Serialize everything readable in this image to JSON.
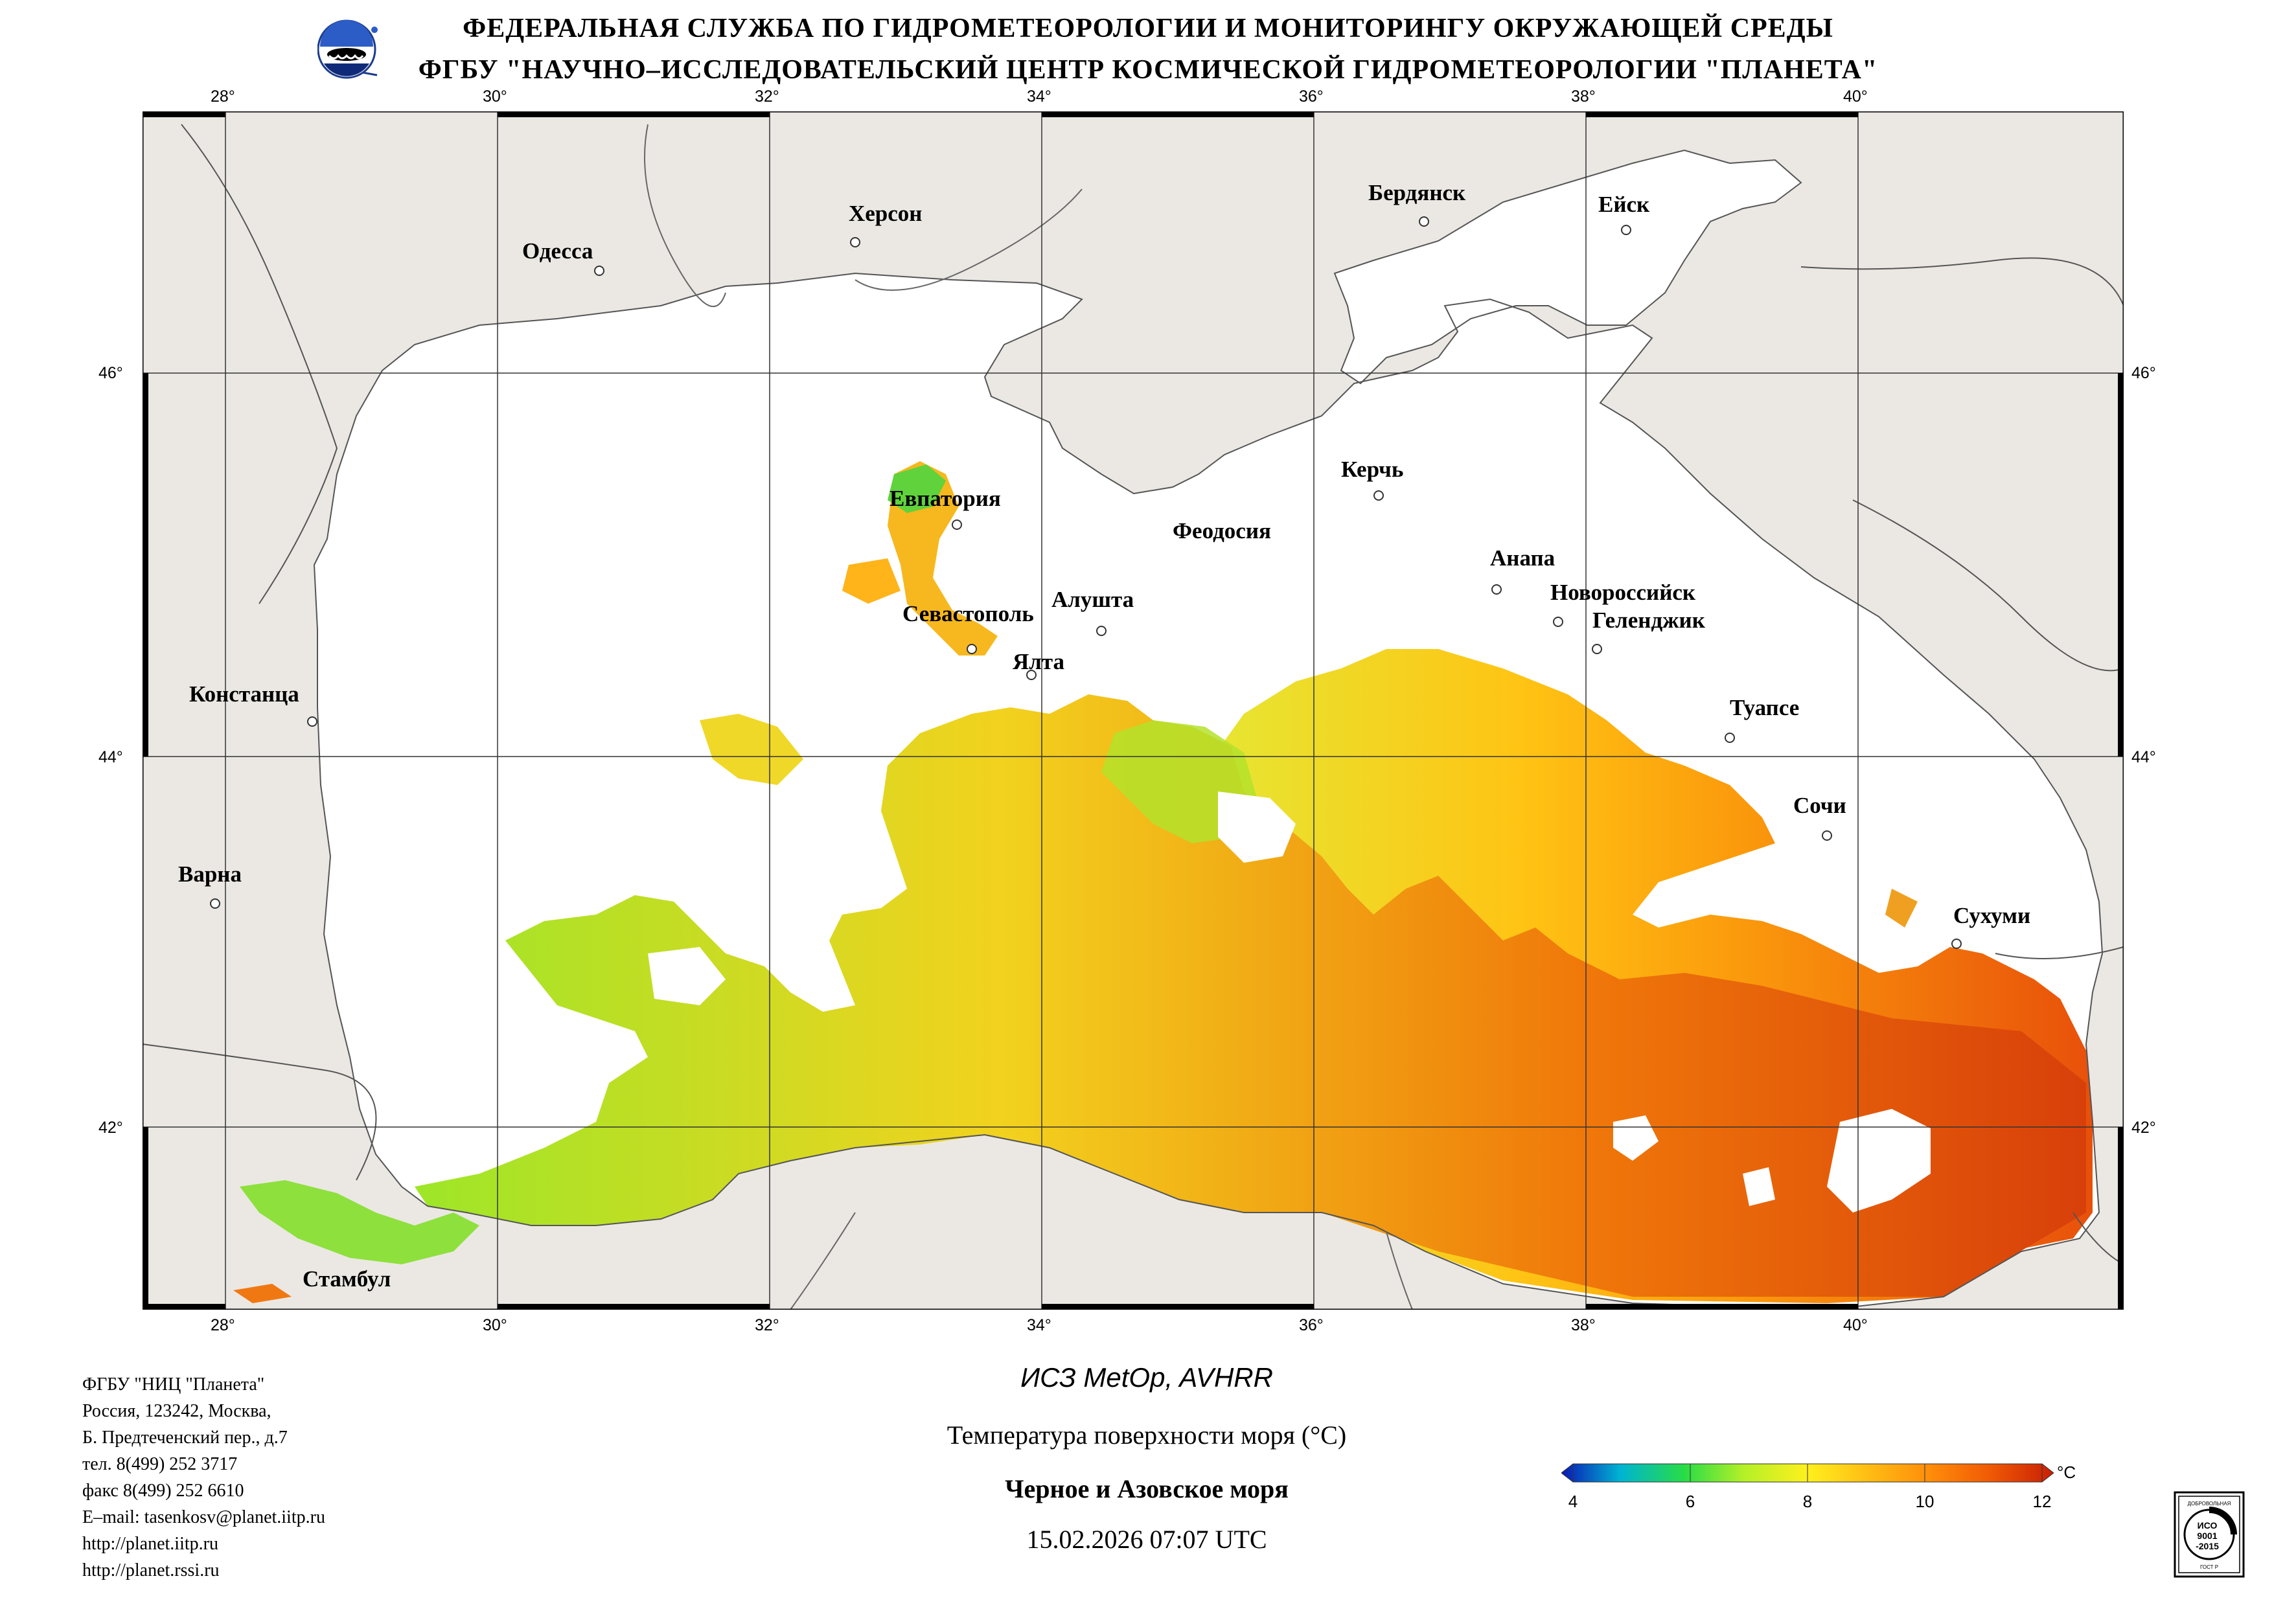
{
  "header": {
    "line1": "ФЕДЕРАЛЬНАЯ СЛУЖБА ПО ГИДРОМЕТЕОРОЛОГИИ И МОНИТОРИНГУ ОКРУЖАЮЩЕЙ СРЕДЫ",
    "line2": "ФГБУ \"НАУЧНО–ИССЛЕДОВАТЕЛЬСКИЙ ЦЕНТР КОСМИЧЕСКОЙ ГИДРОМЕТЕОРОЛОГИИ \"ПЛАНЕТА\""
  },
  "map": {
    "lon_labels": [
      "28°",
      "30°",
      "32°",
      "34°",
      "36°",
      "38°",
      "40°"
    ],
    "lat_labels": [
      "46°",
      "44°",
      "42°"
    ],
    "cities": {
      "odessa": "Одесса",
      "kherson": "Херсон",
      "berdyansk": "Бердянск",
      "yeysk": "Ейск",
      "evpatoria": "Евпатория",
      "kerch": "Керчь",
      "feodosia": "Феодосия",
      "anapa": "Анапа",
      "novorossiysk": "Новороссийск",
      "gelendzhik": "Геленджик",
      "alushta": "Алушта",
      "sevastopol": "Севастополь",
      "yalta": "Ялта",
      "constanta": "Констанца",
      "tuapse": "Туапсе",
      "sochi": "Сочи",
      "varna": "Варна",
      "sukhumi": "Сухуми",
      "istanbul": "Стамбул"
    },
    "colors": {
      "land": "#ebe8e4",
      "cloud": "#ffffff",
      "grid": "#333333"
    }
  },
  "info": {
    "org": "ФГБУ \"НИЦ \"Планета\"",
    "addr1": "Россия, 123242, Москва,",
    "addr2": "Б. Предтеченский пер., д.7",
    "tel": "тел. 8(499) 252 3717",
    "fax": "факс 8(499) 252 6610",
    "email": "E–mail: tasenkosv@planet.iitp.ru",
    "url1": "http://planet.iitp.ru",
    "url2": "http://planet.rssi.ru"
  },
  "caption": {
    "satellite": "ИСЗ MetOp, AVHRR",
    "parameter": "Температура поверхности моря (°C)",
    "region": "Черное и Азовское моря",
    "datetime": "15.02.2026 07:07 UTC"
  },
  "colorbar": {
    "unit": "°C",
    "ticks": [
      "4",
      "6",
      "8",
      "10",
      "12"
    ],
    "min": 4,
    "max": 12,
    "colors": [
      "#0a16b4",
      "#00b4d2",
      "#28dc46",
      "#b4f028",
      "#fff01e",
      "#ffbe14",
      "#ff8c0a",
      "#f05a05",
      "#c81e05"
    ]
  },
  "certificate": {
    "top": "ДОБРОВОЛЬНАЯ",
    "line1": "ИСО",
    "line2": "9001",
    "line3": "-2015",
    "bottom": "ГОСТ Р"
  }
}
